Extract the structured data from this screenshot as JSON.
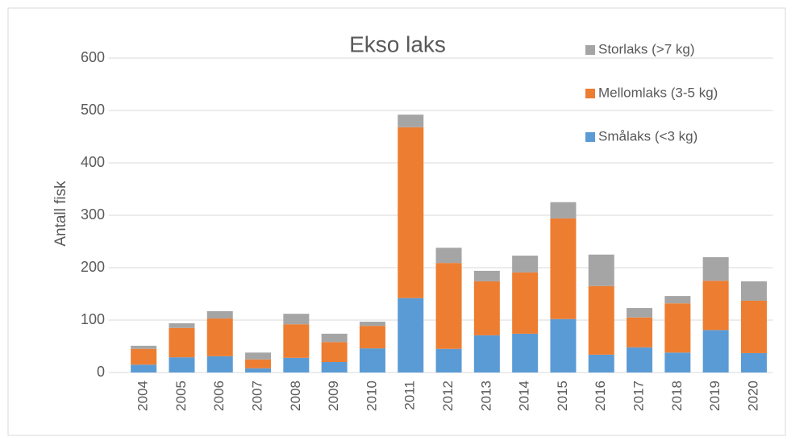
{
  "chart_data": {
    "type": "stacked_bar",
    "title": "Ekso laks",
    "y_label": "Antall fisk",
    "categories": [
      "2004",
      "2005",
      "2006",
      "2007",
      "2008",
      "2009",
      "2010",
      "2011",
      "2012",
      "2013",
      "2014",
      "2015",
      "2016",
      "2017",
      "2018",
      "2019",
      "2020"
    ],
    "series": [
      {
        "name": "Smålaks (<3 kg)",
        "color": "#5b9bd5",
        "values": [
          15,
          29,
          31,
          8,
          28,
          20,
          46,
          142,
          45,
          71,
          74,
          102,
          34,
          48,
          38,
          81,
          37
        ]
      },
      {
        "name": "Mellomlaks (3-5 kg)",
        "color": "#ed7d31",
        "values": [
          30,
          56,
          72,
          17,
          64,
          38,
          43,
          326,
          164,
          103,
          117,
          192,
          131,
          57,
          94,
          94,
          100
        ]
      },
      {
        "name": "Storlaks (>7 kg)",
        "color": "#a5a5a5",
        "values": [
          6,
          9,
          14,
          13,
          20,
          16,
          8,
          24,
          29,
          20,
          32,
          31,
          60,
          18,
          14,
          45,
          37
        ]
      }
    ],
    "ylim": [
      0,
      600
    ],
    "yticks": [
      0,
      100,
      200,
      300,
      400,
      500,
      600
    ],
    "grid": true,
    "legend": "top-right"
  }
}
